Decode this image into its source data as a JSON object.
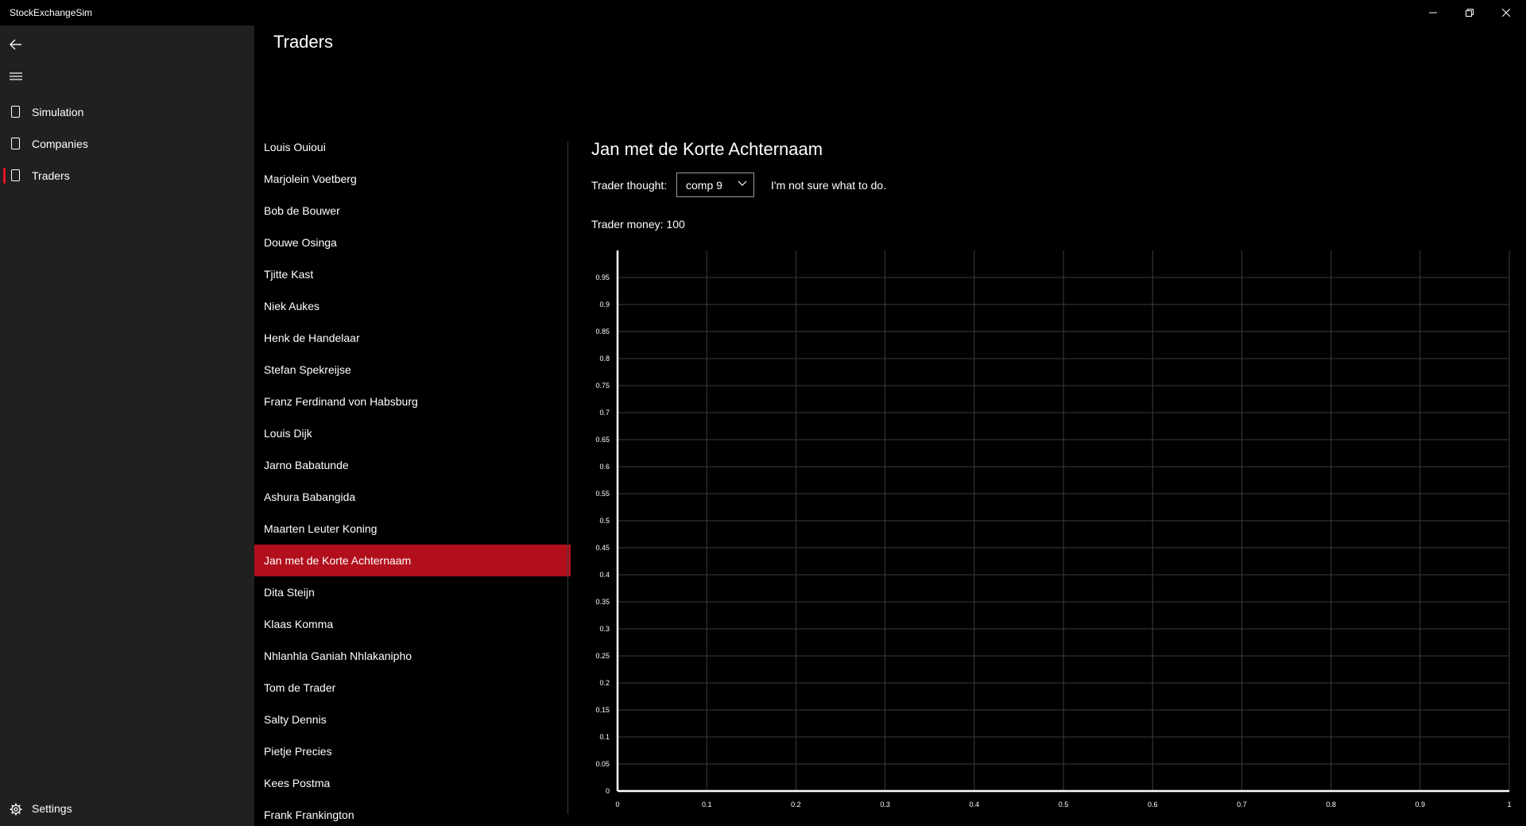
{
  "window": {
    "title": "StockExchangeSim",
    "controls": [
      "minimize",
      "maximize",
      "close"
    ]
  },
  "sidebar": {
    "items": [
      {
        "label": "Simulation",
        "icon": "page-icon",
        "selected": false
      },
      {
        "label": "Companies",
        "icon": "page-icon",
        "selected": false
      },
      {
        "label": "Traders",
        "icon": "page-icon",
        "selected": true
      }
    ],
    "settings_label": "Settings",
    "accent_color": "#e81123"
  },
  "page": {
    "title": "Traders"
  },
  "traders": [
    "Louis Ouioui",
    "Marjolein Voetberg",
    "Bob de Bouwer",
    "Douwe Osinga",
    "Tjitte Kast",
    "Niek Aukes",
    "Henk de Handelaar",
    "Stefan Spekreijse",
    "Franz Ferdinand von Habsburg",
    "Louis Dijk",
    "Jarno Babatunde",
    "Ashura Babangida",
    "Maarten Leuter Koning",
    "Jan met de Korte Achternaam",
    "Dita Steijn",
    "Klaas Komma",
    "Nhlanhla Ganiah Nhlakanipho",
    "Tom de Trader",
    "Salty Dennis",
    "Pietje Precies",
    "Kees Postma",
    "Frank Frankington"
  ],
  "selected_trader_index": 13,
  "selected_color": "#b10f1c",
  "detail": {
    "name": "Jan met de Korte Achternaam",
    "thought_label": "Trader thought:",
    "thought_selected": "comp 9",
    "thought_text": "I'm not sure what to do.",
    "money_label": "Trader money: 100"
  },
  "chart_data": {
    "type": "line",
    "series": [],
    "xlim": [
      0,
      1
    ],
    "ylim": [
      0,
      1
    ],
    "xticks": [
      "0",
      "0.1",
      "0.2",
      "0.3",
      "0.4",
      "0.5",
      "0.6",
      "0.7",
      "0.8",
      "0.9",
      "1"
    ],
    "yticks": [
      "0",
      "0.05",
      "0.1",
      "0.15",
      "0.2",
      "0.25",
      "0.3",
      "0.35",
      "0.4",
      "0.45",
      "0.5",
      "0.55",
      "0.6",
      "0.65",
      "0.7",
      "0.75",
      "0.8",
      "0.85",
      "0.9",
      "0.95"
    ],
    "grid": true,
    "title": "",
    "xlabel": "",
    "ylabel": ""
  }
}
